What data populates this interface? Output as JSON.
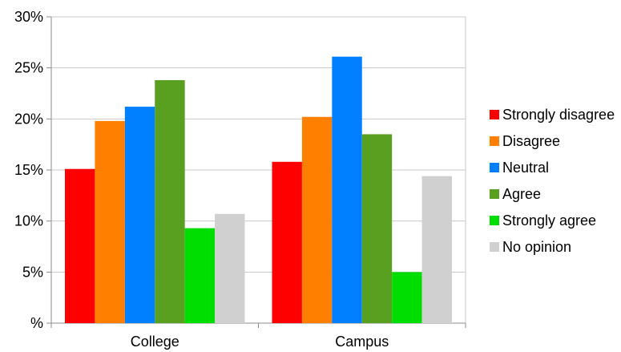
{
  "chart_data": {
    "type": "bar",
    "title": "",
    "xlabel": "",
    "ylabel": "",
    "categories": [
      "College",
      "Campus"
    ],
    "ylim": [
      0,
      30
    ],
    "yticks": [
      0,
      5,
      10,
      15,
      20,
      25,
      30
    ],
    "ytick_labels": [
      "%",
      "5%",
      "10%",
      "15%",
      "20%",
      "25%",
      "30%"
    ],
    "grid": true,
    "legend_position": "right",
    "series": [
      {
        "name": "Strongly disagree",
        "color": "#ff0000",
        "values": [
          15.1,
          15.8
        ]
      },
      {
        "name": "Disagree",
        "color": "#ff8000",
        "values": [
          19.8,
          20.2
        ]
      },
      {
        "name": "Neutral",
        "color": "#0080ff",
        "values": [
          21.2,
          26.1
        ]
      },
      {
        "name": "Agree",
        "color": "#59a020",
        "values": [
          23.8,
          18.5
        ]
      },
      {
        "name": "Strongly agree",
        "color": "#00dd00",
        "values": [
          9.3,
          5.0
        ]
      },
      {
        "name": "No opinion",
        "color": "#d0d0d0",
        "values": [
          10.7,
          14.4
        ]
      }
    ]
  }
}
